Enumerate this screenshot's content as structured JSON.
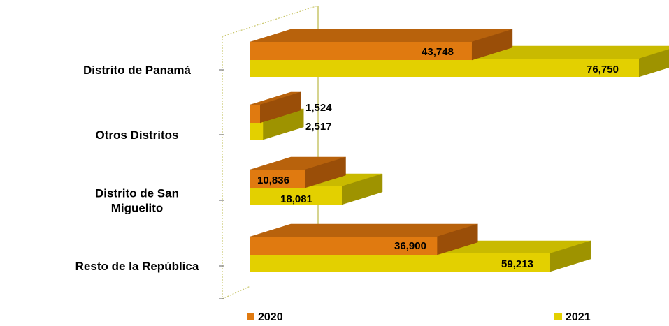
{
  "chart_data": {
    "type": "bar",
    "orientation": "horizontal",
    "style": "3d",
    "categories": [
      [
        "Distrito de Panamá"
      ],
      [
        "Otros Distritos"
      ],
      [
        "Distrito de San",
        "Miguelito"
      ],
      [
        "Resto de la República"
      ]
    ],
    "series": [
      {
        "name": "2020",
        "values": [
          43748,
          1524,
          10836,
          36900
        ],
        "labels": [
          "43,748",
          "1,524",
          "10,836",
          "36,900"
        ],
        "color": "#E07A10",
        "top_color": "#B8620C",
        "side_color": "#9A4E08"
      },
      {
        "name": "2021",
        "values": [
          76750,
          2517,
          18081,
          59213
        ],
        "labels": [
          "76,750",
          "2,517",
          "18,081",
          "59,213"
        ],
        "color": "#E3D000",
        "top_color": "#C9BA00",
        "side_color": "#9E9300"
      }
    ],
    "xlim": [
      0,
      80000
    ],
    "grid": false,
    "legend_position": "bottom"
  }
}
